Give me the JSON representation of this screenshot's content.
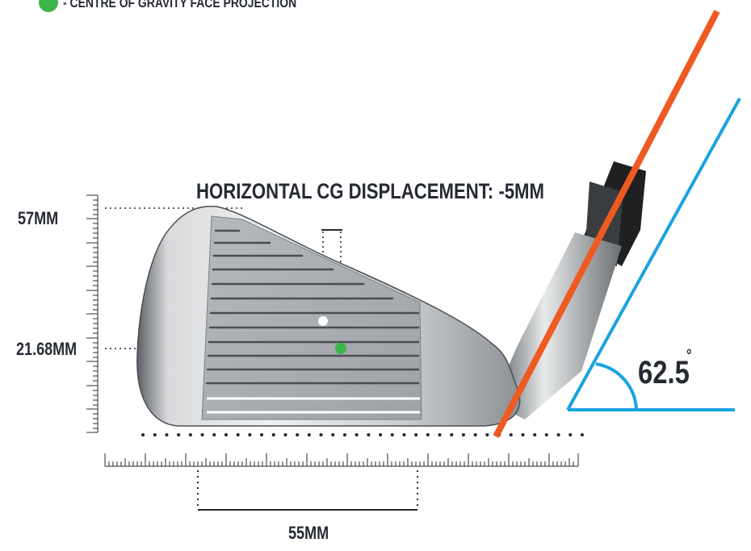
{
  "legend": {
    "text": "- CENTRE OF GRAVITY FACE PROJECTION",
    "color": "#3bb54a"
  },
  "title": "HORIZONTAL CG DISPLACEMENT: -5MM",
  "measurements": {
    "height_top": "57MM",
    "cg_height": "21.68MM",
    "blade_width": "55MM",
    "lie_angle": "62.5",
    "degree_symbol": "°"
  },
  "colors": {
    "shaft_line": "#ee5a22",
    "angle_lines": "#1aa3e0",
    "cg_dot": "#3bb54a",
    "text": "#262a33"
  }
}
